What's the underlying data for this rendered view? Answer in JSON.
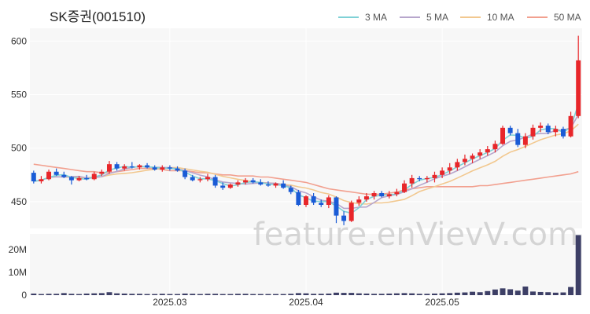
{
  "chart_data": {
    "type": "candlestick",
    "title": "SK증권(001510)",
    "watermark": "feature.enVievV.com",
    "price_axis": {
      "ylim": [
        425,
        612
      ],
      "ticks": [
        450,
        500,
        550,
        600
      ]
    },
    "volume_axis": {
      "ylim": [
        0,
        27
      ],
      "ticks": [
        0,
        10,
        20
      ],
      "tick_labels": [
        "0",
        "10M",
        "20M"
      ]
    },
    "x_ticks": [
      {
        "index": 18,
        "label": "2025.03"
      },
      {
        "index": 36,
        "label": "2025.04"
      },
      {
        "index": 54,
        "label": "2025.05"
      }
    ],
    "legend": [
      {
        "label": "3 MA",
        "color": "#7fd1d6"
      },
      {
        "label": "5 MA",
        "color": "#b7a6cc"
      },
      {
        "label": "10 MA",
        "color": "#f2c88f"
      },
      {
        "label": "50 MA",
        "color": "#f2a08f"
      }
    ],
    "colors": {
      "up": "#e8262a",
      "down": "#1a5bd6",
      "volume": "#3d3f66"
    },
    "candles": [
      [
        477,
        479,
        467,
        469
      ],
      [
        469,
        474,
        467,
        471
      ],
      [
        471,
        480,
        470,
        478
      ],
      [
        478,
        481,
        474,
        475
      ],
      [
        475,
        478,
        472,
        473
      ],
      [
        473,
        474,
        466,
        470
      ],
      [
        470,
        474,
        469,
        472
      ],
      [
        472,
        475,
        470,
        471
      ],
      [
        471,
        478,
        470,
        476
      ],
      [
        476,
        480,
        474,
        478
      ],
      [
        478,
        488,
        476,
        485
      ],
      [
        485,
        487,
        479,
        481
      ],
      [
        481,
        485,
        479,
        483
      ],
      [
        483,
        487,
        481,
        482
      ],
      [
        482,
        485,
        480,
        484
      ],
      [
        484,
        486,
        481,
        482
      ],
      [
        482,
        484,
        479,
        480
      ],
      [
        480,
        484,
        478,
        482
      ],
      [
        482,
        484,
        479,
        481
      ],
      [
        481,
        483,
        478,
        479
      ],
      [
        479,
        481,
        471,
        473
      ],
      [
        473,
        475,
        469,
        470
      ],
      [
        470,
        473,
        468,
        471
      ],
      [
        471,
        476,
        469,
        473
      ],
      [
        473,
        475,
        463,
        465
      ],
      [
        465,
        468,
        461,
        463
      ],
      [
        463,
        467,
        462,
        466
      ],
      [
        466,
        470,
        464,
        468
      ],
      [
        468,
        472,
        466,
        470
      ],
      [
        470,
        472,
        467,
        468
      ],
      [
        468,
        471,
        465,
        466
      ],
      [
        466,
        469,
        464,
        465
      ],
      [
        465,
        468,
        463,
        467
      ],
      [
        467,
        470,
        462,
        463
      ],
      [
        463,
        465,
        457,
        459
      ],
      [
        459,
        461,
        446,
        447
      ],
      [
        447,
        456,
        445,
        455
      ],
      [
        455,
        458,
        447,
        449
      ],
      [
        449,
        452,
        445,
        447
      ],
      [
        447,
        456,
        444,
        454
      ],
      [
        454,
        455,
        430,
        437
      ],
      [
        437,
        441,
        428,
        432
      ],
      [
        432,
        451,
        431,
        449
      ],
      [
        449,
        455,
        446,
        452
      ],
      [
        452,
        458,
        450,
        455
      ],
      [
        455,
        460,
        452,
        458
      ],
      [
        458,
        460,
        454,
        455
      ],
      [
        455,
        460,
        453,
        457
      ],
      [
        457,
        462,
        455,
        459
      ],
      [
        459,
        470,
        458,
        467
      ],
      [
        467,
        475,
        463,
        472
      ],
      [
        472,
        474,
        469,
        471
      ],
      [
        471,
        474,
        468,
        472
      ],
      [
        472,
        478,
        468,
        475
      ],
      [
        475,
        482,
        472,
        479
      ],
      [
        479,
        486,
        476,
        482
      ],
      [
        482,
        490,
        479,
        487
      ],
      [
        487,
        494,
        484,
        490
      ],
      [
        490,
        495,
        486,
        493
      ],
      [
        493,
        499,
        490,
        496
      ],
      [
        496,
        502,
        493,
        499
      ],
      [
        499,
        507,
        496,
        504
      ],
      [
        504,
        521,
        503,
        519
      ],
      [
        519,
        521,
        512,
        514
      ],
      [
        514,
        518,
        501,
        503
      ],
      [
        503,
        514,
        500,
        511
      ],
      [
        511,
        522,
        508,
        519
      ],
      [
        519,
        524,
        515,
        521
      ],
      [
        521,
        523,
        513,
        515
      ],
      [
        515,
        521,
        511,
        518
      ],
      [
        518,
        520,
        509,
        511
      ],
      [
        511,
        534,
        510,
        530
      ],
      [
        530,
        605,
        528,
        582
      ]
    ],
    "volume": [
      0.7,
      0.5,
      0.6,
      0.6,
      0.9,
      0.6,
      0.5,
      0.7,
      0.8,
      0.9,
      1.3,
      0.8,
      0.7,
      0.6,
      0.6,
      0.5,
      0.5,
      0.6,
      0.5,
      0.5,
      0.7,
      0.6,
      0.5,
      0.6,
      0.6,
      0.5,
      0.5,
      0.6,
      0.6,
      0.5,
      0.5,
      0.5,
      0.5,
      0.5,
      0.6,
      0.9,
      0.8,
      0.6,
      0.6,
      0.7,
      1.1,
      1.0,
      1.0,
      0.8,
      0.7,
      0.6,
      0.6,
      0.7,
      0.8,
      0.9,
      0.8,
      0.6,
      0.6,
      0.7,
      0.8,
      0.9,
      1.1,
      1.2,
      1.5,
      1.3,
      1.8,
      2.5,
      3.0,
      2.6,
      2.0,
      3.8,
      1.6,
      1.4,
      1.3,
      1.1,
      1.2,
      3.6,
      26.5
    ],
    "ma50": [
      485,
      484,
      483,
      482,
      481,
      480,
      479,
      478,
      478,
      477,
      477,
      478,
      479,
      480,
      481,
      481,
      481,
      480,
      479,
      479,
      479,
      478,
      477,
      477,
      476,
      475,
      475,
      474,
      474,
      474,
      473,
      473,
      472,
      471,
      470,
      469,
      468,
      466,
      464,
      462,
      461,
      460,
      459,
      458,
      457,
      457,
      457,
      458,
      459,
      461,
      462,
      463,
      464,
      464,
      464,
      464,
      464,
      464,
      464,
      465,
      465,
      466,
      467,
      468,
      469,
      470,
      471,
      472,
      473,
      474,
      475,
      476,
      478
    ]
  }
}
